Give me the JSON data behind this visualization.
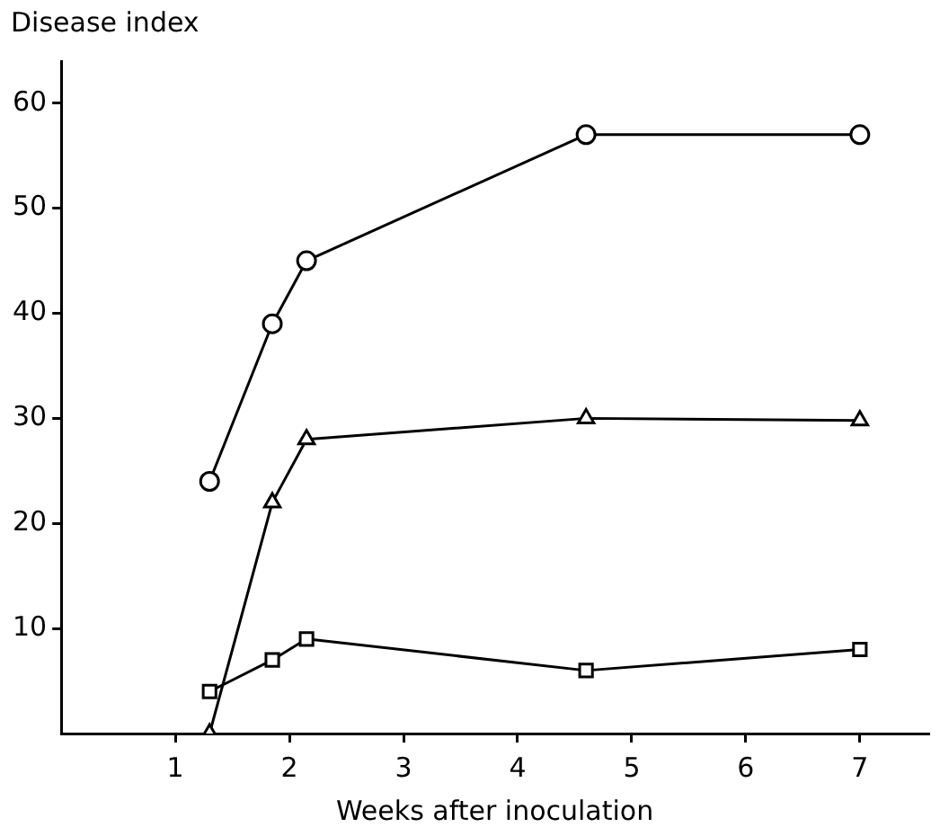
{
  "chart_data": {
    "type": "line",
    "xlabel": "Weeks after inoculation",
    "ylabel": "Disease index",
    "xlim": [
      0,
      7.6
    ],
    "xticks": [
      1,
      2,
      3,
      4,
      5,
      6,
      7
    ],
    "ylim": [
      0,
      64
    ],
    "yticks": [
      10,
      20,
      30,
      40,
      50,
      60
    ],
    "grid": false,
    "legend": false,
    "line_style": "solid",
    "series": [
      {
        "color": "#000000",
        "marker": "circle",
        "x": [
          1.3,
          1.85,
          2.15,
          4.6,
          7
        ],
        "values": [
          24,
          39,
          45,
          57,
          57
        ]
      },
      {
        "color": "#000000",
        "marker": "triangle",
        "x": [
          1.3,
          1.85,
          2.15,
          4.6,
          7
        ],
        "values": [
          0,
          22,
          28,
          30,
          29.8
        ]
      },
      {
        "color": "#000000",
        "marker": "square",
        "x": [
          1.3,
          1.85,
          2.15,
          4.6,
          7
        ],
        "values": [
          4,
          7,
          9,
          6,
          8
        ]
      }
    ]
  }
}
